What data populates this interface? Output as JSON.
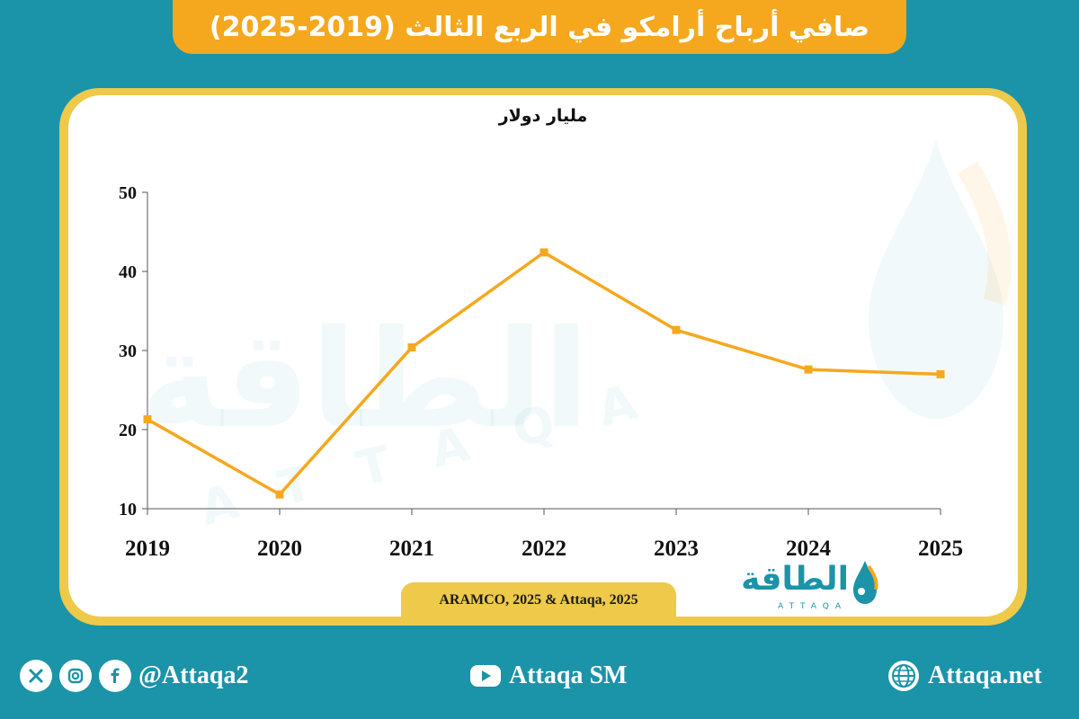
{
  "header": {
    "title": "صافي أرباح أرامكو في الربع الثالث (2019-2025)"
  },
  "chart_data": {
    "type": "line",
    "unit_label": "مليار دولار",
    "categories": [
      "2019",
      "2020",
      "2021",
      "2022",
      "2023",
      "2024",
      "2025"
    ],
    "values": [
      21.3,
      11.8,
      30.4,
      42.4,
      32.6,
      27.6,
      27.0
    ],
    "ylim": [
      10,
      50
    ],
    "yticks": [
      "10",
      "20",
      "30",
      "40",
      "50"
    ],
    "line_color": "#f5a81e",
    "grid": false,
    "legend": "none"
  },
  "source": "ARAMCO, 2025 & Attaqa, 2025",
  "logo": {
    "arabic": "الطاقة",
    "latin": "ATTAQA"
  },
  "footer": {
    "social_handle": "@Attaqa2",
    "youtube": "Attaqa SM",
    "website": "Attaqa.net"
  },
  "colors": {
    "background": "#1b93a8",
    "accent": "#f5a81e",
    "card_border": "#eec94a"
  }
}
